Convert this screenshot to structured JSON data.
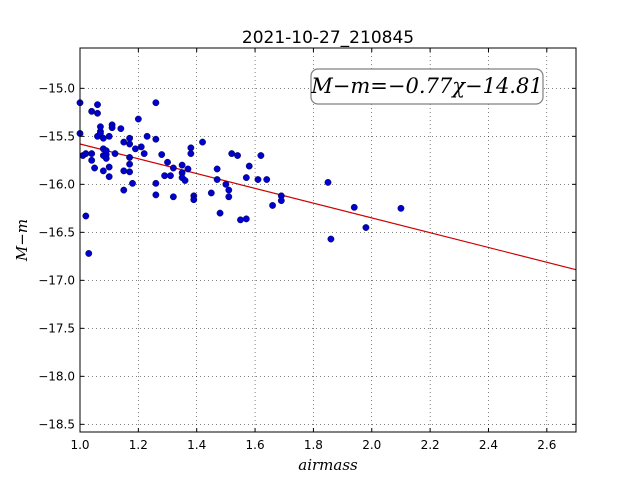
{
  "chart_data": {
    "type": "scatter",
    "title": "2021-10-27_210845",
    "xlabel": "airmass",
    "ylabel": "M−m",
    "annotation": "M−m=−0.77χ−14.81",
    "xlim": [
      1.0,
      2.7
    ],
    "ylim": [
      -18.58,
      -14.58
    ],
    "x_ticks": [
      1.0,
      1.2,
      1.4,
      1.6,
      1.8,
      2.0,
      2.2,
      2.4,
      2.6
    ],
    "x_tick_labels": [
      "1.0",
      "1.2",
      "1.4",
      "1.6",
      "1.8",
      "2.0",
      "2.2",
      "2.4",
      "2.6"
    ],
    "y_ticks": [
      -15.0,
      -15.5,
      -16.0,
      -16.5,
      -17.0,
      -17.5,
      -18.0,
      -18.5
    ],
    "y_tick_labels": [
      "−15.0",
      "−15.5",
      "−16.0",
      "−16.5",
      "−17.0",
      "−17.5",
      "−18.0",
      "−18.5"
    ],
    "grid": true,
    "point_color": "#0000cc",
    "fit_color": "#cc0000",
    "fit": {
      "slope": -0.77,
      "intercept": -14.81
    },
    "points": [
      [
        1.0,
        -15.15
      ],
      [
        1.0,
        -15.47
      ],
      [
        1.01,
        -15.7
      ],
      [
        1.02,
        -16.33
      ],
      [
        1.02,
        -15.68
      ],
      [
        1.03,
        -16.72
      ],
      [
        1.04,
        -15.24
      ],
      [
        1.04,
        -15.68
      ],
      [
        1.04,
        -15.75
      ],
      [
        1.05,
        -15.83
      ],
      [
        1.06,
        -15.17
      ],
      [
        1.06,
        -15.26
      ],
      [
        1.06,
        -15.5
      ],
      [
        1.07,
        -15.45
      ],
      [
        1.07,
        -15.4
      ],
      [
        1.07,
        -15.47
      ],
      [
        1.08,
        -15.52
      ],
      [
        1.08,
        -15.63
      ],
      [
        1.08,
        -15.7
      ],
      [
        1.08,
        -15.86
      ],
      [
        1.09,
        -15.69
      ],
      [
        1.09,
        -15.73
      ],
      [
        1.09,
        -15.65
      ],
      [
        1.1,
        -15.5
      ],
      [
        1.1,
        -15.82
      ],
      [
        1.1,
        -15.92
      ],
      [
        1.11,
        -15.38
      ],
      [
        1.11,
        -15.41
      ],
      [
        1.12,
        -15.68
      ],
      [
        1.14,
        -15.42
      ],
      [
        1.15,
        -15.56
      ],
      [
        1.15,
        -15.86
      ],
      [
        1.15,
        -16.06
      ],
      [
        1.17,
        -15.52
      ],
      [
        1.17,
        -15.58
      ],
      [
        1.17,
        -15.72
      ],
      [
        1.17,
        -15.79
      ],
      [
        1.17,
        -15.87
      ],
      [
        1.18,
        -15.99
      ],
      [
        1.19,
        -15.63
      ],
      [
        1.2,
        -15.32
      ],
      [
        1.21,
        -15.61
      ],
      [
        1.22,
        -15.68
      ],
      [
        1.23,
        -15.5
      ],
      [
        1.26,
        -15.15
      ],
      [
        1.26,
        -15.53
      ],
      [
        1.26,
        -15.99
      ],
      [
        1.26,
        -16.11
      ],
      [
        1.28,
        -15.69
      ],
      [
        1.29,
        -15.91
      ],
      [
        1.3,
        -15.77
      ],
      [
        1.31,
        -15.91
      ],
      [
        1.32,
        -15.83
      ],
      [
        1.32,
        -16.13
      ],
      [
        1.35,
        -15.8
      ],
      [
        1.35,
        -15.88
      ],
      [
        1.35,
        -15.93
      ],
      [
        1.36,
        -15.96
      ],
      [
        1.37,
        -15.84
      ],
      [
        1.38,
        -15.62
      ],
      [
        1.38,
        -15.68
      ],
      [
        1.39,
        -16.12
      ],
      [
        1.39,
        -16.16
      ],
      [
        1.42,
        -15.56
      ],
      [
        1.45,
        -16.09
      ],
      [
        1.47,
        -15.84
      ],
      [
        1.47,
        -15.95
      ],
      [
        1.48,
        -16.3
      ],
      [
        1.5,
        -16.0
      ],
      [
        1.51,
        -16.06
      ],
      [
        1.51,
        -16.13
      ],
      [
        1.52,
        -15.68
      ],
      [
        1.54,
        -15.7
      ],
      [
        1.55,
        -16.37
      ],
      [
        1.57,
        -15.93
      ],
      [
        1.57,
        -16.36
      ],
      [
        1.58,
        -15.81
      ],
      [
        1.61,
        -15.95
      ],
      [
        1.62,
        -15.7
      ],
      [
        1.64,
        -15.95
      ],
      [
        1.66,
        -16.22
      ],
      [
        1.69,
        -16.12
      ],
      [
        1.69,
        -16.17
      ],
      [
        1.85,
        -15.98
      ],
      [
        1.86,
        -16.57
      ],
      [
        1.94,
        -16.24
      ],
      [
        1.98,
        -16.45
      ],
      [
        2.1,
        -16.25
      ]
    ]
  }
}
